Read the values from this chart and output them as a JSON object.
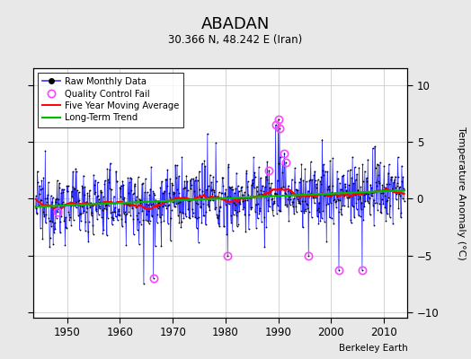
{
  "title": "ABADAN",
  "subtitle": "30.366 N, 48.242 E (Iran)",
  "ylabel": "Temperature Anomaly (°C)",
  "credit": "Berkeley Earth",
  "year_start": 1944,
  "year_end": 2013,
  "ylim": [
    -10.5,
    11.5
  ],
  "yticks": [
    -10,
    -5,
    0,
    5,
    10
  ],
  "xticks": [
    1950,
    1960,
    1970,
    1980,
    1990,
    2000,
    2010
  ],
  "bg_color": "#e8e8e8",
  "plot_bg_color": "#ffffff",
  "raw_line_color": "#3333ff",
  "raw_marker_color": "#000000",
  "qc_fail_color": "#ff44ff",
  "moving_avg_color": "#ff0000",
  "trend_color": "#00bb00",
  "grid_color": "#cccccc",
  "seed": 12345,
  "noise_scale": 1.5,
  "trend_slope": 0.018
}
